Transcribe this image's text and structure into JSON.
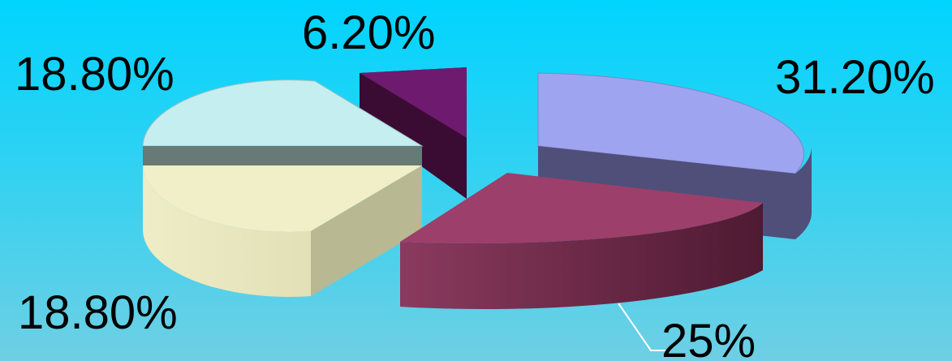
{
  "chart_data": {
    "type": "pie",
    "style": "3d-exploded",
    "slices": [
      {
        "value": 31.2,
        "label": "31.20%",
        "color": "#9fa4f0",
        "side_color": "#4f4f7a"
      },
      {
        "value": 25.0,
        "label": "25%",
        "color": "#9c3f6a",
        "side_color": "#5e1f3a"
      },
      {
        "value": 18.8,
        "label": "18.80%",
        "color": "#f0efc7",
        "side_color": "#b8b893"
      },
      {
        "value": 18.8,
        "label": "18.80%",
        "color": "#c5eef0",
        "side_color": "#677a75"
      },
      {
        "value": 6.2,
        "label": "6.20%",
        "color": "#6e1a6e",
        "side_color": "#3a0c33"
      }
    ],
    "legend": "none"
  }
}
